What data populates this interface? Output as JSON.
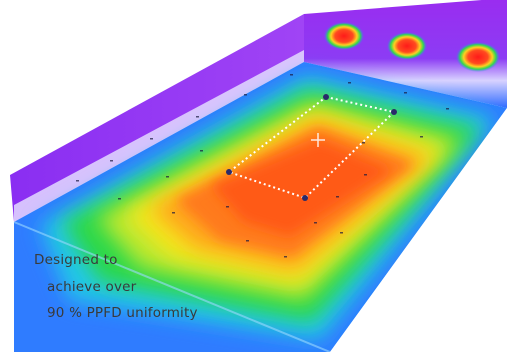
{
  "caption": {
    "line1": "Designed to",
    "line2": "achieve over",
    "line3": "90 % PPFD uniformity"
  },
  "colors": {
    "wall_high": "#9a2cf0",
    "edge_blue": "#1f8cff",
    "mid_green": "#2cd84a",
    "inner_yellow": "#f4e61c",
    "core_orange": "#ff7a1e",
    "center_red": "#ff4a12",
    "selection_border": "#ffffff",
    "handle": "#2a2a6a"
  },
  "icons": {
    "cursor": "crosshair-icon",
    "light_spot": "light-spot-icon"
  }
}
